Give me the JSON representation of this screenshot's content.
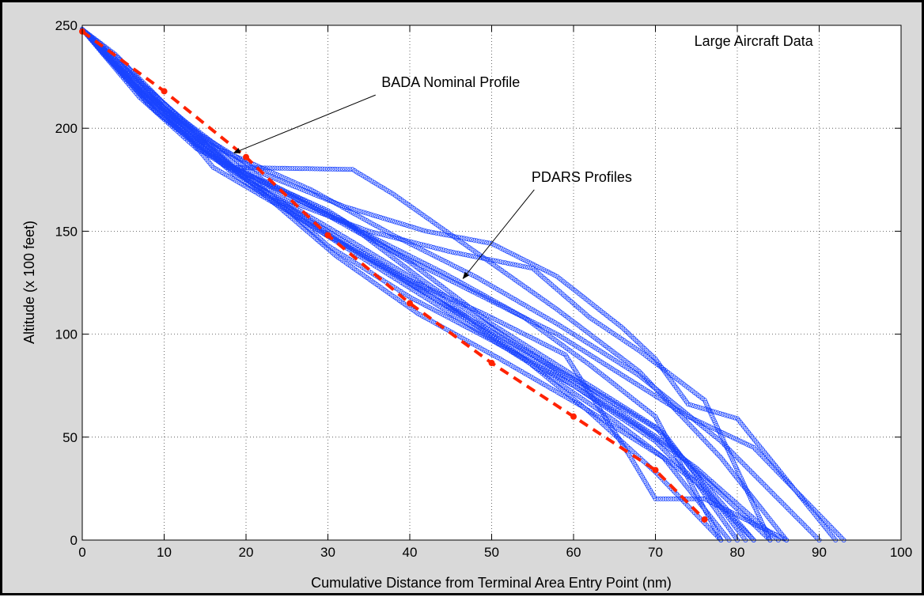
{
  "chart_data": {
    "type": "scatter",
    "title": "",
    "xlabel": "Cumulative Distance from Terminal Area Entry Point (nm)",
    "ylabel": "Altitude (x 100 feet)",
    "xlim": [
      0,
      100
    ],
    "ylim": [
      0,
      250
    ],
    "xticks": [
      "0",
      "10",
      "20",
      "30",
      "40",
      "50",
      "60",
      "70",
      "80",
      "90",
      "100"
    ],
    "yticks": [
      "0",
      "50",
      "100",
      "150",
      "200",
      "250"
    ],
    "grid": true,
    "legend": "none",
    "annotations": [
      {
        "text": "Large Aircraft Data",
        "x": 82,
        "y": 240
      },
      {
        "text": "BADA Nominal Profile",
        "x": 45,
        "y": 220,
        "arrow_to": [
          18.5,
          188
        ]
      },
      {
        "text": "PDARS Profiles",
        "x": 61,
        "y": 174,
        "arrow_to": [
          46.5,
          127
        ]
      }
    ],
    "series": [
      {
        "role": "bada-nominal",
        "style": "dashed-red",
        "color": "#ff2200",
        "x": [
          0,
          10,
          20,
          30,
          40,
          50,
          60,
          70,
          76
        ],
        "y": [
          247,
          218,
          186,
          148,
          115,
          86,
          60,
          34,
          10
        ]
      },
      {
        "role": "pdars",
        "style": "circles-blue",
        "color": "#1a44ff",
        "profiles": [
          {
            "x": [
              0,
              8,
              15,
              22,
              30,
              38,
              46,
              54,
              62,
              70,
              78
            ],
            "y": [
              248,
              212,
              188,
              170,
              150,
              130,
              110,
              88,
              62,
              33,
              0
            ]
          },
          {
            "x": [
              0,
              6,
              12,
              16,
              25,
              35,
              45,
              55,
              65,
              75,
              80
            ],
            "y": [
              248,
              225,
              200,
              181,
              160,
              135,
              110,
              85,
              58,
              28,
              0
            ]
          },
          {
            "x": [
              0,
              10,
              18,
              33,
              38,
              48,
              58,
              68,
              78,
              86
            ],
            "y": [
              248,
              205,
              181,
              180,
              168,
              140,
              112,
              82,
              40,
              0
            ]
          },
          {
            "x": [
              0,
              7,
              14,
              20,
              30,
              40,
              50,
              60,
              70,
              82
            ],
            "y": [
              248,
              215,
              190,
              178,
              160,
              135,
              105,
              80,
              55,
              0
            ]
          },
          {
            "x": [
              0,
              5,
              12,
              22,
              32,
              42,
              52,
              62,
              72,
              84
            ],
            "y": [
              248,
              230,
              205,
              175,
              155,
              125,
              98,
              72,
              45,
              0
            ]
          },
          {
            "x": [
              0,
              9,
              17,
              25,
              35,
              45,
              55,
              62,
              68,
              76,
              84
            ],
            "y": [
              248,
              208,
              183,
              165,
              150,
              140,
              132,
              108,
              92,
              68,
              0
            ]
          },
          {
            "x": [
              0,
              8,
              16,
              24,
              34,
              44,
              54,
              62,
              70,
              78
            ],
            "y": [
              248,
              214,
              186,
              170,
              150,
              130,
              108,
              85,
              60,
              0
            ]
          },
          {
            "x": [
              0,
              6,
              14,
              22,
              32,
              42,
              50,
              58,
              66,
              70,
              74,
              80,
              92
            ],
            "y": [
              248,
              222,
              198,
              178,
              162,
              150,
              144,
              128,
              103,
              88,
              66,
              59,
              0
            ]
          },
          {
            "x": [
              0,
              7,
              15,
              28,
              38,
              48,
              58,
              68,
              78,
              90
            ],
            "y": [
              248,
              218,
              193,
              170,
              148,
              128,
              105,
              80,
              48,
              0
            ]
          },
          {
            "x": [
              0,
              5,
              10,
              20,
              30,
              40,
              50,
              60,
              70,
              82
            ],
            "y": [
              248,
              232,
              210,
              175,
              152,
              128,
              100,
              75,
              48,
              0
            ]
          },
          {
            "x": [
              0,
              8,
              18,
              28,
              38,
              48,
              58,
              66,
              74,
              82,
              93
            ],
            "y": [
              248,
              216,
              182,
              162,
              140,
              120,
              100,
              80,
              60,
              45,
              0
            ]
          },
          {
            "x": [
              0,
              9,
              19,
              29,
              39,
              49,
              59,
              67,
              70,
              76,
              86
            ],
            "y": [
              248,
              210,
              176,
              150,
              128,
              110,
              90,
              40,
              20,
              20,
              0
            ]
          },
          {
            "x": [
              0,
              6,
              13,
              21,
              31,
              41,
              51,
              61,
              71,
              81
            ],
            "y": [
              248,
              224,
              197,
              173,
              146,
              122,
              99,
              76,
              52,
              0
            ]
          },
          {
            "x": [
              0,
              10,
              20,
              30,
              40,
              50,
              60,
              68,
              75,
              85
            ],
            "y": [
              248,
              212,
              178,
              143,
              118,
              97,
              75,
              55,
              35,
              0
            ]
          },
          {
            "x": [
              0,
              4,
              11,
              21,
              31,
              41,
              51,
              61,
              71,
              79
            ],
            "y": [
              248,
              236,
              208,
              172,
              138,
              110,
              88,
              65,
              40,
              0
            ]
          }
        ]
      }
    ]
  }
}
